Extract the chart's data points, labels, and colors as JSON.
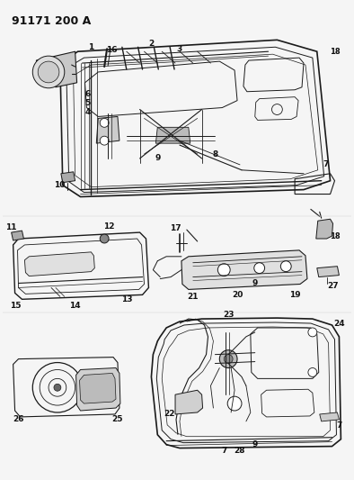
{
  "title": "91171 200 A",
  "bg_color": "#f5f5f5",
  "line_color": "#1a1a1a",
  "text_color": "#111111",
  "title_fontsize": 9,
  "label_fontsize": 6.5,
  "fig_width": 3.94,
  "fig_height": 5.33,
  "dpi": 100
}
